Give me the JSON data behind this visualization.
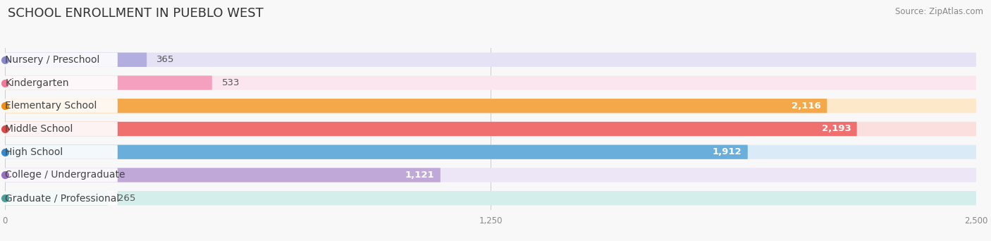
{
  "title": "SCHOOL ENROLLMENT IN PUEBLO WEST",
  "source": "Source: ZipAtlas.com",
  "categories": [
    "Nursery / Preschool",
    "Kindergarten",
    "Elementary School",
    "Middle School",
    "High School",
    "College / Undergraduate",
    "Graduate / Professional"
  ],
  "values": [
    365,
    533,
    2116,
    2193,
    1912,
    1121,
    265
  ],
  "bar_colors": [
    "#b3aee0",
    "#f5a0be",
    "#f5a84a",
    "#f07070",
    "#6aaedc",
    "#c0a8d8",
    "#78c8c0"
  ],
  "bar_bg_colors": [
    "#e4e2f4",
    "#fbe6f0",
    "#fde8ca",
    "#fbdede",
    "#daeaf6",
    "#ece6f6",
    "#d4eeec"
  ],
  "dot_colors": [
    "#8888cc",
    "#f07898",
    "#f09010",
    "#e04848",
    "#3888cc",
    "#9870c0",
    "#48a098"
  ],
  "xlim": [
    0,
    2500
  ],
  "xticks": [
    0,
    1250,
    2500
  ],
  "background_color": "#f8f8f8",
  "title_fontsize": 13,
  "label_fontsize": 10,
  "value_fontsize": 9.5,
  "source_fontsize": 8.5,
  "value_threshold": 800
}
